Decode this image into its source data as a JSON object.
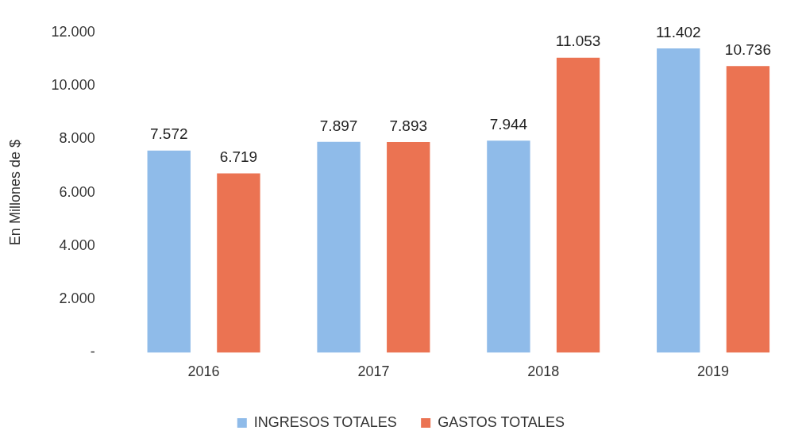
{
  "chart_data": {
    "type": "bar",
    "ylabel": "En Millones de $",
    "categories": [
      "2016",
      "2017",
      "2018",
      "2019"
    ],
    "series": [
      {
        "name": "INGRESOS TOTALES",
        "color": "#8fbbe9",
        "values": [
          7572,
          7897,
          7944,
          11402
        ],
        "value_labels": [
          "7.572",
          "7.897",
          "7.944",
          "11.402"
        ]
      },
      {
        "name": "GASTOS TOTALES",
        "color": "#eb7352",
        "values": [
          6719,
          7893,
          11053,
          10736
        ],
        "value_labels": [
          "6.719",
          "7.893",
          "11.053",
          "10.736"
        ]
      }
    ],
    "ylim": [
      0,
      12000
    ],
    "yticks": [
      {
        "value": 0,
        "label": "-"
      },
      {
        "value": 2000,
        "label": "2.000"
      },
      {
        "value": 4000,
        "label": "4.000"
      },
      {
        "value": 6000,
        "label": "6.000"
      },
      {
        "value": 8000,
        "label": "8.000"
      },
      {
        "value": 10000,
        "label": "10.000"
      },
      {
        "value": 12000,
        "label": "12.000"
      }
    ],
    "grid": false,
    "legend": "bottom"
  }
}
